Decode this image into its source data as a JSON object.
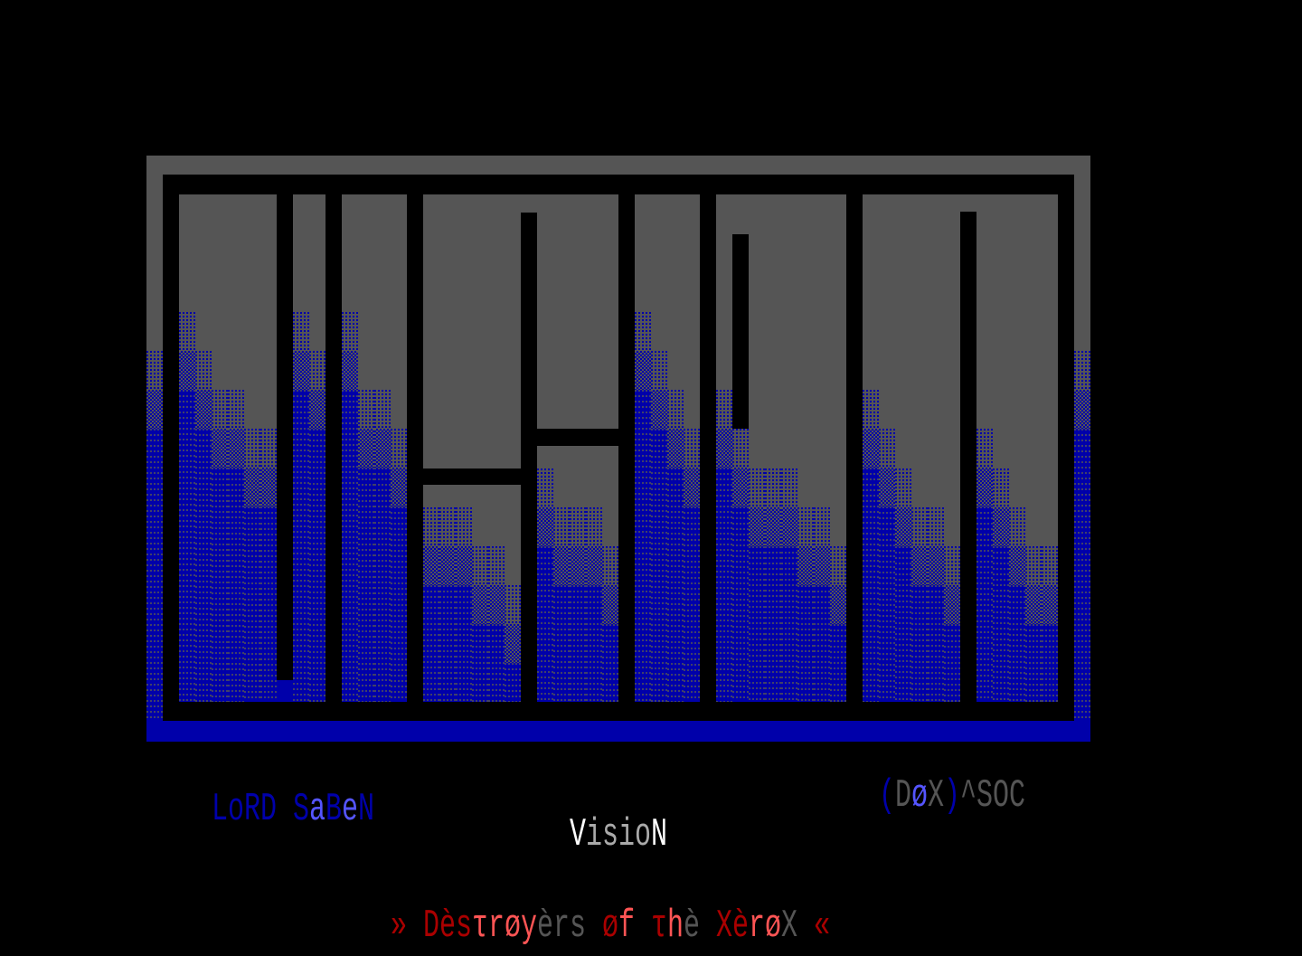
{
  "artwork": {
    "title_art_text": "VISION",
    "palette": {
      "gray": "#555555",
      "blue": "#0000AA",
      "light_blue": "#5555FF",
      "red": "#AA0000",
      "light_red": "#FF5555",
      "light_gray": "#AAAAAA",
      "white": "#FFFFFF"
    }
  },
  "credits": {
    "artist": {
      "text": "LoRD SaBeN",
      "chars": [
        {
          "c": "L",
          "col": "#0000AA"
        },
        {
          "c": "o",
          "col": "#0000AA"
        },
        {
          "c": "R",
          "col": "#0000AA"
        },
        {
          "c": "D",
          "col": "#0000AA"
        },
        {
          "c": " ",
          "col": "#000"
        },
        {
          "c": "S",
          "col": "#0000AA"
        },
        {
          "c": "a",
          "col": "#5555FF"
        },
        {
          "c": "B",
          "col": "#0000AA"
        },
        {
          "c": "e",
          "col": "#5555FF"
        },
        {
          "c": "N",
          "col": "#0000AA"
        }
      ]
    },
    "group": {
      "text": "(DøX)^SOC",
      "chars": [
        {
          "c": "(",
          "col": "#0000AA"
        },
        {
          "c": "D",
          "col": "#555555"
        },
        {
          "c": "ø",
          "col": "#5555FF"
        },
        {
          "c": "X",
          "col": "#555555"
        },
        {
          "c": ")",
          "col": "#0000AA"
        },
        {
          "c": "^",
          "col": "#555555"
        },
        {
          "c": "S",
          "col": "#555555"
        },
        {
          "c": "O",
          "col": "#555555"
        },
        {
          "c": "C",
          "col": "#555555"
        }
      ]
    },
    "name": {
      "text": "VisioN",
      "chars": [
        {
          "c": "V",
          "col": "#FFFFFF"
        },
        {
          "c": "i",
          "col": "#AAAAAA"
        },
        {
          "c": "s",
          "col": "#AAAAAA"
        },
        {
          "c": "i",
          "col": "#AAAAAA"
        },
        {
          "c": "o",
          "col": "#AAAAAA"
        },
        {
          "c": "N",
          "col": "#FFFFFF"
        }
      ]
    },
    "tagline": {
      "text": "» Dèsτrøyèrs øf τhè XèrøX «",
      "chars": [
        {
          "c": "»",
          "col": "#AA0000"
        },
        {
          "c": " ",
          "col": "#000"
        },
        {
          "c": "D",
          "col": "#AA0000"
        },
        {
          "c": "è",
          "col": "#AA0000"
        },
        {
          "c": "s",
          "col": "#AA0000"
        },
        {
          "c": "τ",
          "col": "#FF5555"
        },
        {
          "c": "r",
          "col": "#FF5555"
        },
        {
          "c": "ø",
          "col": "#FF5555"
        },
        {
          "c": "y",
          "col": "#FF5555"
        },
        {
          "c": "è",
          "col": "#555555"
        },
        {
          "c": "r",
          "col": "#555555"
        },
        {
          "c": "s",
          "col": "#555555"
        },
        {
          "c": " ",
          "col": "#000"
        },
        {
          "c": "ø",
          "col": "#AA0000"
        },
        {
          "c": "f",
          "col": "#FF5555"
        },
        {
          "c": " ",
          "col": "#000"
        },
        {
          "c": "τ",
          "col": "#AA0000"
        },
        {
          "c": "h",
          "col": "#FF5555"
        },
        {
          "c": "è",
          "col": "#555555"
        },
        {
          "c": " ",
          "col": "#000"
        },
        {
          "c": "X",
          "col": "#AA0000"
        },
        {
          "c": "è",
          "col": "#AA0000"
        },
        {
          "c": "r",
          "col": "#FF5555"
        },
        {
          "c": "ø",
          "col": "#FF5555"
        },
        {
          "c": "X",
          "col": "#555555"
        },
        {
          "c": " ",
          "col": "#000"
        },
        {
          "c": "«",
          "col": "#AA0000"
        }
      ]
    }
  }
}
